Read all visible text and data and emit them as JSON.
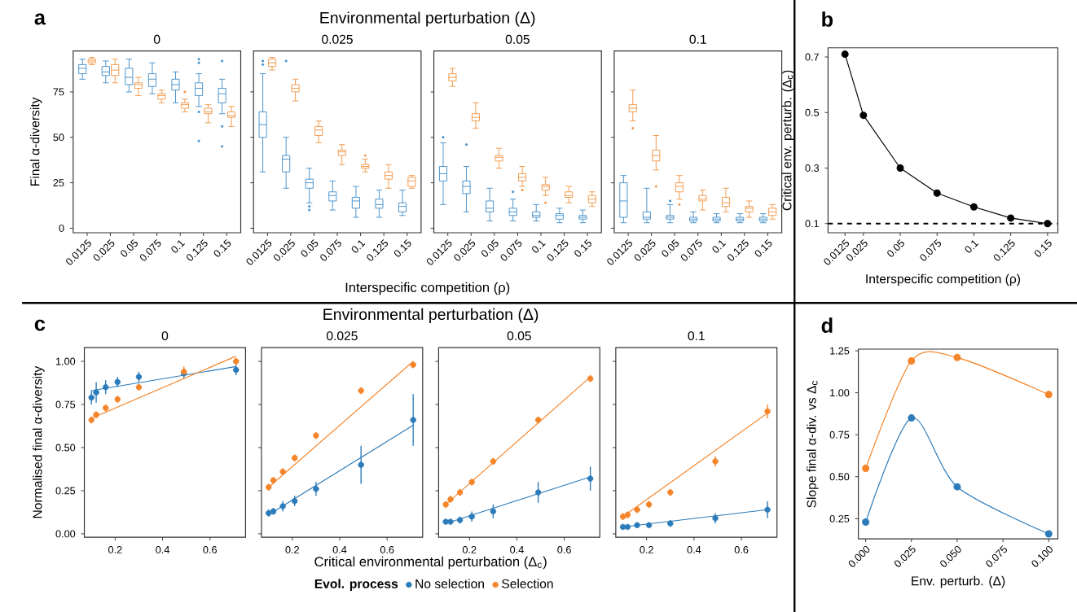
{
  "chart_data": [
    {
      "type": "box",
      "annotations": [
        "a"
      ],
      "subtitle": "0",
      "ylabel": "Final α-diversity",
      "categories": [
        "0.0125",
        "0.025",
        "0.05",
        "0.075",
        "0.1",
        "0.125",
        "0.15"
      ],
      "ylim": [
        -2.5,
        97.5
      ],
      "yticks": [
        0,
        25,
        50,
        75
      ],
      "series": [
        {
          "color": "#4b93cc",
          "boxes": [
            {
              "low": 82,
              "q1": 85,
              "median": 88,
              "q3": 90,
              "high": 93
            },
            {
              "low": 80,
              "q1": 84,
              "median": 86,
              "q3": 89,
              "high": 92
            },
            {
              "low": 75,
              "q1": 79,
              "median": 83,
              "q3": 88,
              "high": 93
            },
            {
              "low": 74,
              "q1": 78,
              "median": 82,
              "q3": 85,
              "high": 91
            },
            {
              "low": 69,
              "q1": 76,
              "median": 79,
              "q3": 82,
              "high": 86
            },
            {
              "low": 67,
              "q1": 73,
              "median": 77,
              "q3": 80,
              "high": 85,
              "outliers": [
                93,
                91,
                64,
                48
              ]
            },
            {
              "low": 63,
              "q1": 69,
              "median": 74,
              "q3": 77,
              "high": 82,
              "outliers": [
                92,
                56,
                45
              ]
            }
          ]
        },
        {
          "color": "#f39b4e",
          "boxes": [
            {
              "low": 90,
              "q1": 91,
              "median": 92,
              "q3": 93,
              "high": 94
            },
            {
              "low": 80,
              "q1": 84,
              "median": 87,
              "q3": 90,
              "high": 93
            },
            {
              "low": 73,
              "q1": 77,
              "median": 79,
              "q3": 80,
              "high": 83
            },
            {
              "low": 69,
              "q1": 71,
              "median": 73,
              "q3": 74,
              "high": 76
            },
            {
              "low": 64,
              "q1": 66,
              "median": 68,
              "q3": 69,
              "high": 71,
              "outliers": [
                75
              ]
            },
            {
              "low": 58,
              "q1": 63,
              "median": 64,
              "q3": 66,
              "high": 68
            },
            {
              "low": 56,
              "q1": 61,
              "median": 62,
              "q3": 64,
              "high": 67
            }
          ]
        }
      ]
    },
    {
      "type": "box",
      "title": "Environmental perturbation (Δ)",
      "subtitle": "0.025",
      "xlabel": "Interspecific competition (ρ)",
      "categories": [
        "0.0125",
        "0.025",
        "0.05",
        "0.075",
        "0.1",
        "0.125",
        "0.15"
      ],
      "ylim": [
        -2.5,
        97.5
      ],
      "yticks": [
        0,
        25,
        50,
        75
      ],
      "tick_labels": "x",
      "series": [
        {
          "color": "#4b93cc",
          "boxes": [
            {
              "low": 31,
              "q1": 50,
              "median": 57,
              "q3": 64,
              "high": 85,
              "outliers": [
                92,
                90
              ]
            },
            {
              "low": 22,
              "q1": 31,
              "median": 38,
              "q3": 40,
              "high": 50,
              "outliers": [
                92
              ]
            },
            {
              "low": 14,
              "q1": 22,
              "median": 25,
              "q3": 27,
              "high": 33,
              "outliers": [
                12,
                10
              ]
            },
            {
              "low": 10,
              "q1": 15,
              "median": 18,
              "q3": 20,
              "high": 26
            },
            {
              "low": 6,
              "q1": 11,
              "median": 15,
              "q3": 17,
              "high": 23
            },
            {
              "low": 6,
              "q1": 11,
              "median": 13,
              "q3": 16,
              "high": 21
            },
            {
              "low": 7,
              "q1": 9,
              "median": 12,
              "q3": 14,
              "high": 21
            }
          ]
        },
        {
          "color": "#f39b4e",
          "boxes": [
            {
              "low": 87,
              "q1": 89,
              "median": 91,
              "q3": 93,
              "high": 94
            },
            {
              "low": 70,
              "q1": 75,
              "median": 77,
              "q3": 79,
              "high": 82
            },
            {
              "low": 47,
              "q1": 51,
              "median": 54,
              "q3": 56,
              "high": 59
            },
            {
              "low": 35,
              "q1": 40,
              "median": 42,
              "q3": 43,
              "high": 46
            },
            {
              "low": 31,
              "q1": 33,
              "median": 34,
              "q3": 35,
              "high": 38,
              "outliers": [
                40
              ]
            },
            {
              "low": 22,
              "q1": 27,
              "median": 29,
              "q3": 31,
              "high": 35
            },
            {
              "low": 22,
              "q1": 23,
              "median": 26,
              "q3": 28,
              "high": 29
            }
          ]
        }
      ]
    },
    {
      "type": "box",
      "subtitle": "0.05",
      "categories": [
        "0.0125",
        "0.025",
        "0.05",
        "0.075",
        "0.1",
        "0.125",
        "0.15"
      ],
      "ylim": [
        -2.5,
        97.5
      ],
      "yticks": [
        0,
        25,
        50,
        75
      ],
      "tick_labels": "x",
      "series": [
        {
          "color": "#4b93cc",
          "boxes": [
            {
              "low": 13,
              "q1": 26,
              "median": 30,
              "q3": 34,
              "high": 47,
              "outliers": [
                50
              ]
            },
            {
              "low": 9,
              "q1": 19,
              "median": 23,
              "q3": 26,
              "high": 34,
              "outliers": [
                46
              ]
            },
            {
              "low": 4,
              "q1": 9,
              "median": 11,
              "q3": 15,
              "high": 22
            },
            {
              "low": 4,
              "q1": 7,
              "median": 9,
              "q3": 11,
              "high": 16,
              "outliers": [
                20
              ]
            },
            {
              "low": 4,
              "q1": 6,
              "median": 7,
              "q3": 9,
              "high": 13
            },
            {
              "low": 3,
              "q1": 5,
              "median": 7,
              "q3": 8,
              "high": 11
            },
            {
              "low": 3,
              "q1": 5,
              "median": 6,
              "q3": 7,
              "high": 10
            }
          ]
        },
        {
          "color": "#f39b4e",
          "boxes": [
            {
              "low": 78,
              "q1": 81,
              "median": 83,
              "q3": 85,
              "high": 88
            },
            {
              "low": 55,
              "q1": 59,
              "median": 61,
              "q3": 63,
              "high": 69
            },
            {
              "low": 33,
              "q1": 37,
              "median": 39,
              "q3": 40,
              "high": 44
            },
            {
              "low": 23,
              "q1": 26,
              "median": 28,
              "q3": 30,
              "high": 34,
              "outliers": [
                21
              ]
            },
            {
              "low": 18,
              "q1": 21,
              "median": 23,
              "q3": 24,
              "high": 28,
              "outliers": [
                14
              ]
            },
            {
              "low": 14,
              "q1": 17,
              "median": 18,
              "q3": 20,
              "high": 23
            },
            {
              "low": 12,
              "q1": 14,
              "median": 16,
              "q3": 18,
              "high": 20
            }
          ]
        }
      ]
    },
    {
      "type": "box",
      "subtitle": "0.1",
      "categories": [
        "0.0125",
        "0.025",
        "0.05",
        "0.075",
        "0.1",
        "0.125",
        "0.15"
      ],
      "ylim": [
        -2.5,
        97.5
      ],
      "yticks": [
        0,
        25,
        50,
        75
      ],
      "tick_labels": "x",
      "series": [
        {
          "color": "#4b93cc",
          "boxes": [
            {
              "low": 3,
              "q1": 6,
              "median": 15,
              "q3": 25,
              "high": 29
            },
            {
              "low": 3,
              "q1": 5,
              "median": 6,
              "q3": 9,
              "high": 22
            },
            {
              "low": 3,
              "q1": 5,
              "median": 6,
              "q3": 7,
              "high": 13,
              "outliers": [
                15
              ]
            },
            {
              "low": 3,
              "q1": 4,
              "median": 5,
              "q3": 6,
              "high": 9
            },
            {
              "low": 3,
              "q1": 4,
              "median": 5,
              "q3": 6,
              "high": 8
            },
            {
              "low": 3,
              "q1": 4,
              "median": 5,
              "q3": 6,
              "high": 8
            },
            {
              "low": 3,
              "q1": 4,
              "median": 5,
              "q3": 6,
              "high": 8
            }
          ]
        },
        {
          "color": "#f39b4e",
          "boxes": [
            {
              "low": 59,
              "q1": 64,
              "median": 66,
              "q3": 68,
              "high": 76,
              "outliers": [
                55
              ]
            },
            {
              "low": 32,
              "q1": 37,
              "median": 40,
              "q3": 43,
              "high": 51,
              "outliers": [
                23
              ]
            },
            {
              "low": 16,
              "q1": 20,
              "median": 23,
              "q3": 25,
              "high": 29,
              "outliers": [
                13
              ]
            },
            {
              "low": 10,
              "q1": 15,
              "median": 16,
              "q3": 18,
              "high": 21
            },
            {
              "low": 9,
              "q1": 12,
              "median": 14,
              "q3": 17,
              "high": 22
            },
            {
              "low": 6,
              "q1": 9,
              "median": 11,
              "q3": 12,
              "high": 15
            },
            {
              "low": 5,
              "q1": 7,
              "median": 9,
              "q3": 11,
              "high": 13
            }
          ]
        }
      ]
    },
    {
      "type": "line",
      "annotations": [
        "b"
      ],
      "xlabel": "Interspecific competition (ρ)",
      "ylabel": "Critical env. perturb. (Δ$_{c}$)",
      "marker": "circle",
      "xlim": [
        0.001,
        0.157
      ],
      "xticks": [
        0.0125,
        0.025,
        0.05,
        0.075,
        0.1,
        0.125,
        0.15
      ],
      "ylim": [
        0.067,
        0.733
      ],
      "yticks": [
        0.1,
        0.3,
        0.5,
        0.7
      ],
      "ref_lines": [
        {
          "axis": "y",
          "value": 0.1,
          "color": "#000000",
          "line_style": "dashed"
        }
      ],
      "series": [
        {
          "color": "#000000",
          "x": [
            0.0125,
            0.025,
            0.05,
            0.075,
            0.1,
            0.125,
            0.15
          ],
          "values": [
            0.71,
            0.49,
            0.3,
            0.21,
            0.16,
            0.12,
            0.1
          ]
        }
      ]
    },
    {
      "type": "scatter",
      "annotations": [
        "c"
      ],
      "subtitle": "0",
      "ylabel": "Normalised final α-diversity",
      "xlim": [
        0.07,
        0.75
      ],
      "xticks": [
        0.2,
        0.4,
        0.6
      ],
      "ylim": [
        -0.02,
        1.08
      ],
      "yticks": [
        {
          "value": 0,
          "label": "0.00"
        },
        {
          "value": 0.25,
          "label": "0.25"
        },
        {
          "value": 0.5,
          "label": "0.50"
        },
        {
          "value": 0.75,
          "label": "0.75"
        },
        {
          "value": 1,
          "label": "1.00"
        }
      ],
      "series": [
        {
          "color": "#2b7bba",
          "x": [
            0.1,
            0.12,
            0.16,
            0.21,
            0.3,
            0.49,
            0.71
          ],
          "values": [
            0.79,
            0.82,
            0.85,
            0.88,
            0.91,
            0.93,
            0.95
          ],
          "errors": [
            0.04,
            0.06,
            0.04,
            0.03,
            0.03,
            0.03,
            0.03
          ]
        },
        {
          "color": "#f5852a",
          "x": [
            0.1,
            0.12,
            0.16,
            0.21,
            0.3,
            0.49,
            0.71
          ],
          "values": [
            0.66,
            0.69,
            0.73,
            0.78,
            0.85,
            0.94,
            1.0
          ],
          "errors": [
            0.02,
            0.02,
            0.02,
            0.02,
            0.02,
            0.03,
            0.02
          ]
        },
        {
          "type": "line",
          "color": "#2b7bba",
          "x": [
            0.1,
            0.71
          ],
          "values": [
            0.83,
            0.97
          ]
        },
        {
          "type": "line",
          "color": "#f5852a",
          "x": [
            0.1,
            0.71
          ],
          "values": [
            0.67,
            1.03
          ]
        }
      ]
    },
    {
      "type": "scatter",
      "title": "Environmental perturbation (Δ)",
      "subtitle": "0.025",
      "xlabel": "Critical environmental perturbation (Δ$_{c}$)",
      "legend": "bottom",
      "legend_title": "Evol. process",
      "xlim": [
        0.07,
        0.75
      ],
      "xticks": [
        0.2,
        0.4,
        0.6
      ],
      "ylim": [
        -0.02,
        1.08
      ],
      "yticks": [
        0,
        0.25,
        0.5,
        0.75,
        1
      ],
      "tick_labels": "x",
      "series": [
        {
          "name": "No selection",
          "color": "#2b7bba",
          "x": [
            0.1,
            0.12,
            0.16,
            0.21,
            0.3,
            0.49,
            0.71
          ],
          "values": [
            0.12,
            0.13,
            0.16,
            0.19,
            0.26,
            0.4,
            0.66
          ],
          "errors": [
            0.02,
            0.02,
            0.03,
            0.03,
            0.04,
            0.11,
            0.15
          ]
        },
        {
          "name": "Selection",
          "color": "#f5852a",
          "x": [
            0.1,
            0.12,
            0.16,
            0.21,
            0.3,
            0.49,
            0.71
          ],
          "values": [
            0.27,
            0.31,
            0.36,
            0.44,
            0.57,
            0.83,
            0.98
          ],
          "errors": [
            0.02,
            0.02,
            0.02,
            0.02,
            0.02,
            0.02,
            0.02
          ]
        },
        {
          "type": "line",
          "color": "#2b7bba",
          "x": [
            0.1,
            0.71
          ],
          "values": [
            0.11,
            0.63
          ]
        },
        {
          "type": "line",
          "color": "#f5852a",
          "x": [
            0.1,
            0.71
          ],
          "values": [
            0.27,
            1.0
          ]
        }
      ]
    },
    {
      "type": "scatter",
      "subtitle": "0.05",
      "xlim": [
        0.07,
        0.75
      ],
      "xticks": [
        0.2,
        0.4,
        0.6
      ],
      "ylim": [
        -0.02,
        1.08
      ],
      "yticks": [
        0,
        0.25,
        0.5,
        0.75,
        1
      ],
      "tick_labels": "x",
      "series": [
        {
          "color": "#2b7bba",
          "x": [
            0.1,
            0.12,
            0.16,
            0.21,
            0.3,
            0.49,
            0.71
          ],
          "values": [
            0.07,
            0.07,
            0.08,
            0.1,
            0.13,
            0.24,
            0.32
          ],
          "errors": [
            0.01,
            0.01,
            0.02,
            0.03,
            0.04,
            0.06,
            0.07
          ]
        },
        {
          "color": "#f5852a",
          "x": [
            0.1,
            0.12,
            0.16,
            0.21,
            0.3,
            0.49,
            0.71
          ],
          "values": [
            0.17,
            0.2,
            0.24,
            0.3,
            0.42,
            0.66,
            0.9
          ],
          "errors": [
            0.02,
            0.02,
            0.02,
            0.02,
            0.02,
            0.02,
            0.02
          ]
        },
        {
          "type": "line",
          "color": "#2b7bba",
          "x": [
            0.1,
            0.71
          ],
          "values": [
            0.06,
            0.33
          ]
        },
        {
          "type": "line",
          "color": "#f5852a",
          "x": [
            0.1,
            0.71
          ],
          "values": [
            0.17,
            0.91
          ]
        }
      ]
    },
    {
      "type": "scatter",
      "subtitle": "0.1",
      "xlim": [
        0.07,
        0.75
      ],
      "xticks": [
        0.2,
        0.4,
        0.6
      ],
      "ylim": [
        -0.02,
        1.08
      ],
      "yticks": [
        0,
        0.25,
        0.5,
        0.75,
        1
      ],
      "tick_labels": "x",
      "series": [
        {
          "color": "#2b7bba",
          "x": [
            0.1,
            0.12,
            0.16,
            0.21,
            0.3,
            0.49,
            0.71
          ],
          "values": [
            0.04,
            0.04,
            0.05,
            0.05,
            0.06,
            0.09,
            0.14
          ],
          "errors": [
            0.01,
            0.01,
            0.01,
            0.01,
            0.02,
            0.03,
            0.05
          ]
        },
        {
          "color": "#f5852a",
          "x": [
            0.1,
            0.12,
            0.16,
            0.21,
            0.3,
            0.49,
            0.71
          ],
          "values": [
            0.1,
            0.11,
            0.14,
            0.17,
            0.24,
            0.42,
            0.71
          ],
          "errors": [
            0.02,
            0.02,
            0.02,
            0.02,
            0.02,
            0.03,
            0.04
          ]
        },
        {
          "type": "line",
          "color": "#2b7bba",
          "x": [
            0.1,
            0.71
          ],
          "values": [
            0.04,
            0.14
          ]
        },
        {
          "type": "line",
          "color": "#f5852a",
          "x": [
            0.1,
            0.71
          ],
          "values": [
            0.1,
            0.7
          ]
        }
      ]
    },
    {
      "type": "line",
      "annotations": [
        "d"
      ],
      "xlabel": "Env. perturb. (Δ)",
      "ylabel": "Slope final α-div. vs Δ$_{c}$",
      "marker": "circle",
      "xlim": [
        -0.004,
        0.105
      ],
      "xticks": [
        {
          "value": 0,
          "label": "0.000"
        },
        {
          "value": 0.025,
          "label": "0.025"
        },
        {
          "value": 0.05,
          "label": "0.050"
        },
        {
          "value": 0.075,
          "label": "0.075"
        },
        {
          "value": 0.1,
          "label": "0.100"
        }
      ],
      "ylim": [
        0.13,
        1.26
      ],
      "yticks": [
        {
          "value": 0.25,
          "label": "0.25"
        },
        {
          "value": 0.5,
          "label": "0.50"
        },
        {
          "value": 0.75,
          "label": "0.75"
        },
        {
          "value": 1,
          "label": "1.00"
        },
        {
          "value": 1.25,
          "label": "1.25"
        }
      ],
      "series": [
        {
          "color": "#2b7bba",
          "x": [
            0,
            0.025,
            0.05,
            0.1
          ],
          "values": [
            0.23,
            0.85,
            0.44,
            0.16
          ]
        },
        {
          "color": "#f5852a",
          "x": [
            0,
            0.025,
            0.05,
            0.1
          ],
          "values": [
            0.55,
            1.19,
            1.21,
            0.99
          ]
        }
      ]
    }
  ]
}
